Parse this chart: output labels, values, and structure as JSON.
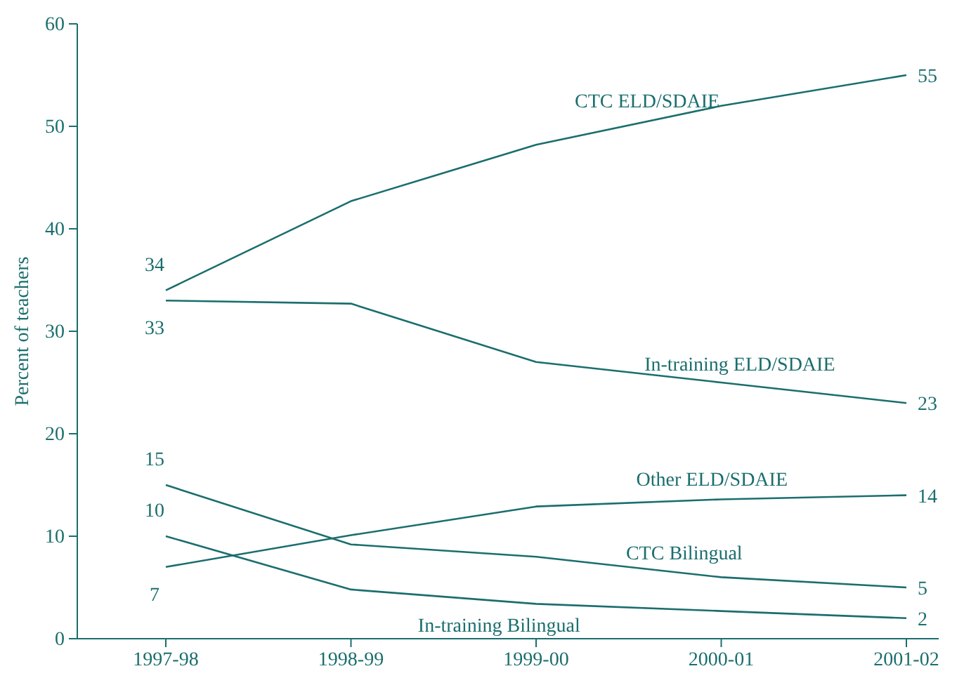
{
  "chart_data": {
    "type": "line",
    "ylabel": "Percent of teachers",
    "categories": [
      "1997-98",
      "1998-99",
      "1999-00",
      "2000-01",
      "2001-02"
    ],
    "ylim": [
      0,
      60
    ],
    "yticks": [
      0,
      10,
      20,
      30,
      40,
      50,
      60
    ],
    "grid": false,
    "marker": "none",
    "line_style": "solid",
    "series": [
      {
        "name": "CTC ELD/SDAIE",
        "color": "#1b6e6e",
        "values": [
          34,
          42.7,
          48.2,
          52,
          55
        ],
        "value_labels": [
          "34",
          null,
          null,
          null,
          "55"
        ]
      },
      {
        "name": "In-training ELD/SDAIE",
        "color": "#1b6e6e",
        "values": [
          33,
          32.7,
          27,
          25,
          23
        ],
        "value_labels": [
          "33",
          null,
          null,
          null,
          "23"
        ]
      },
      {
        "name": "Other ELD/SDAIE",
        "color": "#1b6e6e",
        "values": [
          7,
          10.1,
          12.9,
          13.6,
          14
        ],
        "value_labels": [
          "7",
          null,
          null,
          null,
          "14"
        ]
      },
      {
        "name": "CTC Bilingual",
        "color": "#1b6e6e",
        "values": [
          15,
          9.2,
          8,
          6,
          5
        ],
        "value_labels": [
          "15",
          null,
          null,
          null,
          "5"
        ]
      },
      {
        "name": "In-training Bilingual",
        "color": "#1b6e6e",
        "values": [
          10,
          4.8,
          3.4,
          2.7,
          2
        ],
        "value_labels": [
          "10",
          null,
          null,
          null,
          "2"
        ]
      }
    ]
  }
}
